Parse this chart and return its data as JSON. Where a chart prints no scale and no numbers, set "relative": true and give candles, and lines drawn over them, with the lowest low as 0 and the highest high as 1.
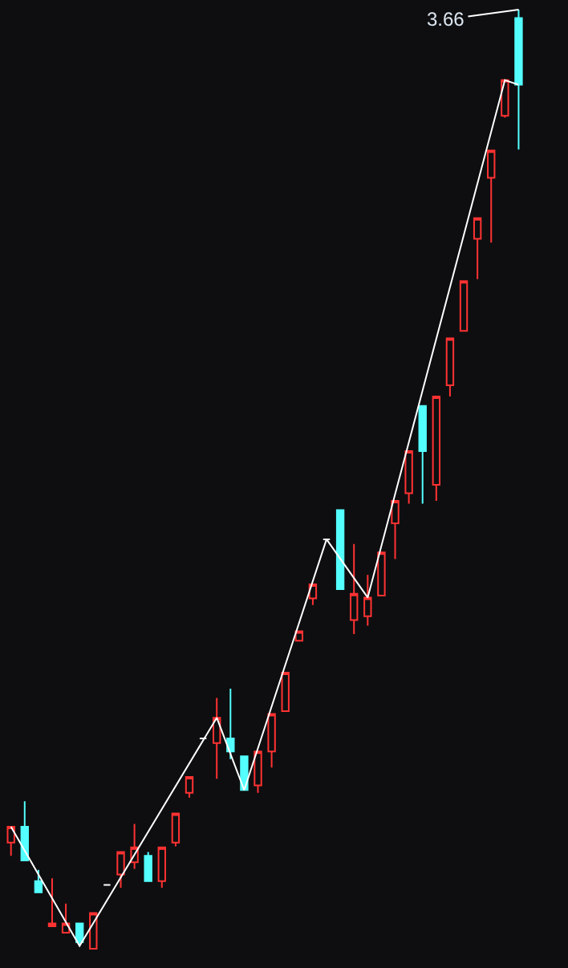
{
  "chart_data": {
    "type": "candlestick",
    "relative": true,
    "categories": [
      null,
      null,
      null,
      null,
      null,
      null,
      null,
      null,
      null,
      null,
      null,
      null,
      null,
      null,
      null,
      null,
      null,
      null,
      null,
      null,
      null,
      null,
      null,
      null,
      null,
      null,
      null,
      null,
      null,
      null,
      null,
      null,
      null,
      null,
      null,
      null,
      null,
      null
    ],
    "ohlc": [
      [
        0.113,
        0.13,
        0.099,
        0.13
      ],
      [
        0.13,
        0.157,
        0.094,
        0.094
      ],
      [
        0.072,
        0.084,
        0.06,
        0.06
      ],
      [
        0.024,
        0.075,
        0.024,
        0.027
      ],
      [
        0.017,
        0.048,
        0.017,
        0.027
      ],
      [
        0.027,
        0.027,
        0.003,
        0.007
      ],
      [
        0,
        0.038,
        0,
        0.038
      ],
      [
        0.068,
        0.068,
        0.068,
        0.068
      ],
      [
        0.079,
        0.103,
        0.065,
        0.103
      ],
      [
        0.092,
        0.133,
        0.085,
        0.108
      ],
      [
        0.099,
        0.103,
        0.072,
        0.072
      ],
      [
        0.072,
        0.108,
        0.065,
        0.108
      ],
      [
        0.113,
        0.144,
        0.109,
        0.144
      ],
      [
        0.166,
        0.183,
        0.161,
        0.183
      ],
      [
        0.224,
        0.224,
        0.224,
        0.224
      ],
      [
        0.219,
        0.267,
        0.181,
        0.246
      ],
      [
        0.224,
        0.277,
        0.202,
        0.21
      ],
      [
        0.205,
        0.205,
        0.169,
        0.169
      ],
      [
        0.174,
        0.21,
        0.166,
        0.21
      ],
      [
        0.21,
        0.25,
        0.193,
        0.25
      ],
      [
        0.253,
        0.294,
        0.253,
        0.294
      ],
      [
        0.328,
        0.338,
        0.328,
        0.338
      ],
      [
        0.373,
        0.388,
        0.366,
        0.388
      ],
      [
        0.436,
        0.436,
        0.436,
        0.436
      ],
      [
        0.467,
        0.467,
        0.383,
        0.383
      ],
      [
        0.35,
        0.431,
        0.335,
        0.378
      ],
      [
        0.354,
        0.398,
        0.344,
        0.374
      ],
      [
        0.376,
        0.422,
        0.376,
        0.422
      ],
      [
        0.453,
        0.477,
        0.415,
        0.477
      ],
      [
        0.485,
        0.53,
        0.474,
        0.53
      ],
      [
        0.578,
        0.578,
        0.474,
        0.53
      ],
      [
        0.494,
        0.588,
        0.477,
        0.588
      ],
      [
        0.6,
        0.65,
        0.588,
        0.65
      ],
      [
        0.658,
        0.711,
        0.658,
        0.711
      ],
      [
        0.756,
        0.778,
        0.713,
        0.778
      ],
      [
        0.821,
        0.85,
        0.752,
        0.85
      ],
      [
        0.887,
        0.925,
        0.885,
        0.925
      ],
      [
        0.991,
        1,
        0.851,
        0.92
      ]
    ],
    "colors": [
      "#ff3232",
      "#54ffff",
      "#54ffff",
      "#ff3232",
      "#ff3232",
      "#54ffff",
      "#ff3232",
      "#ffffff",
      "#ff3232",
      "#ff3232",
      "#54ffff",
      "#ff3232",
      "#ff3232",
      "#ff3232",
      "#ffffff",
      "#ff3232",
      "#54ffff",
      "#54ffff",
      "#ff3232",
      "#ff3232",
      "#ff3232",
      "#ff3232",
      "#ff3232",
      "#ffffff",
      "#54ffff",
      "#ff3232",
      "#ff3232",
      "#ff3232",
      "#ff3232",
      "#ff3232",
      "#54ffff",
      "#ff3232",
      "#ff3232",
      "#ff3232",
      "#ff3232",
      "#ff3232",
      "#ff3232",
      "#54ffff"
    ],
    "series": [
      {
        "type": "line",
        "color": "#ffffff",
        "values": [
          0.13,
          null,
          null,
          null,
          null,
          0.003,
          null,
          null,
          null,
          null,
          null,
          null,
          null,
          null,
          null,
          0.246,
          null,
          0.169,
          null,
          null,
          null,
          null,
          null,
          0.436,
          null,
          null,
          0.374,
          null,
          null,
          null,
          null,
          null,
          null,
          null,
          null,
          null,
          0.925,
          0.92
        ]
      }
    ],
    "annotations": [
      "3.66"
    ]
  }
}
